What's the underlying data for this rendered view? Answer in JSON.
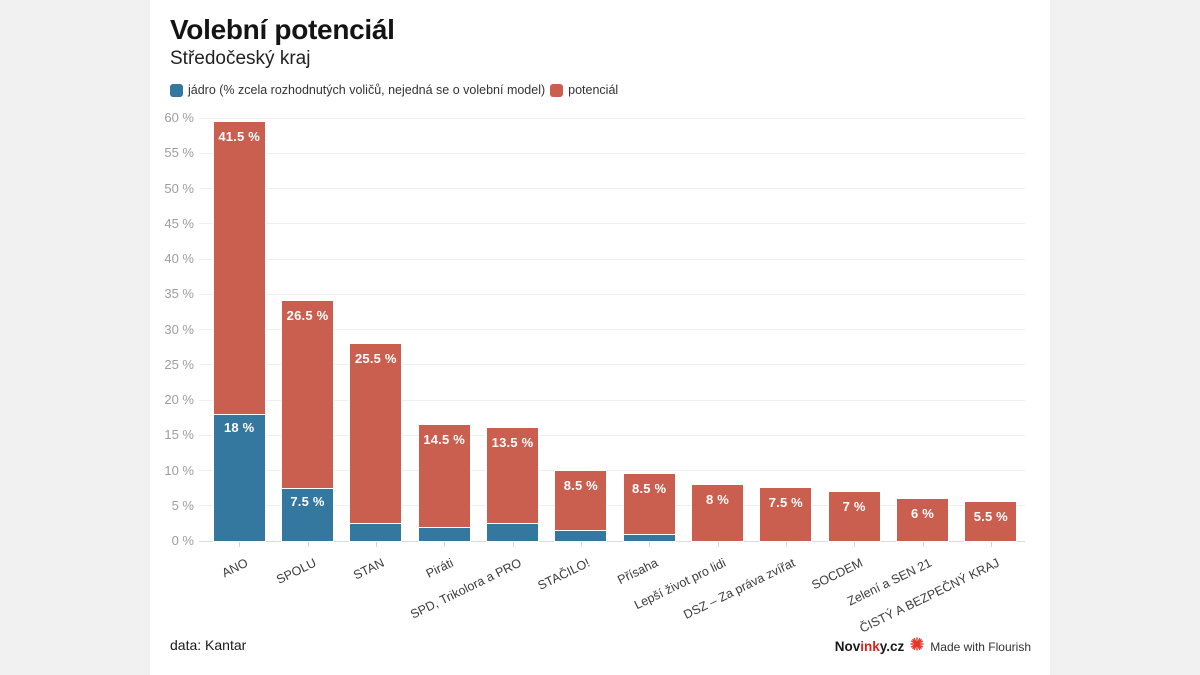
{
  "title": "Volební potenciál",
  "subtitle": "Středočeský kraj",
  "legend": {
    "items": [
      {
        "label": "jádro (% zcela rozhodnutých voličů, nejedná se o volební model)",
        "color": "#35789f"
      },
      {
        "label": "potenciál",
        "color": "#ca5f50"
      }
    ]
  },
  "footer": {
    "source": "data: Kantar",
    "brand_prefix": "Nov",
    "brand_highlight": "ink",
    "brand_suffix": "y.cz",
    "flourish_label": "Made with Flourish",
    "flourish_icon": "flourish-starburst-icon",
    "flourish_color": "#e6352b"
  },
  "colors": {
    "core": "#35789f",
    "potential": "#ca5f50"
  },
  "chart_data": {
    "type": "bar",
    "stacked": true,
    "categories": [
      "ANO",
      "SPOLU",
      "STAN",
      "Piráti",
      "SPD, Trikolora a PRO",
      "STAČILO!",
      "Přísaha",
      "Lepší život pro lidi",
      "DSZ – Za práva zvířat",
      "SOCDEM",
      "Zelení a SEN 21",
      "ČISTÝ A BEZPEČNÝ KRAJ"
    ],
    "series": [
      {
        "name": "jádro",
        "color": "#35789f",
        "values": [
          18,
          7.5,
          2.5,
          2,
          2.5,
          1.5,
          1,
          0,
          0,
          0,
          0,
          0
        ],
        "labels": [
          "18 %",
          "7.5 %",
          "",
          "",
          "",
          "",
          "",
          "",
          "",
          "",
          "",
          ""
        ]
      },
      {
        "name": "potenciál",
        "color": "#ca5f50",
        "values": [
          41.5,
          26.5,
          25.5,
          14.5,
          13.5,
          8.5,
          8.5,
          8,
          7.5,
          7,
          6,
          5.5
        ],
        "labels": [
          "41.5 %",
          "26.5 %",
          "25.5 %",
          "14.5 %",
          "13.5 %",
          "8.5 %",
          "8.5 %",
          "8 %",
          "7.5 %",
          "7 %",
          "6 %",
          "5.5 %"
        ]
      }
    ],
    "title": "Volební potenciál",
    "xlabel": "",
    "ylabel": "",
    "ylim": [
      0,
      60
    ],
    "ytick_step": 5,
    "ytick_suffix": " %",
    "grid": true,
    "legend_position": "top"
  }
}
